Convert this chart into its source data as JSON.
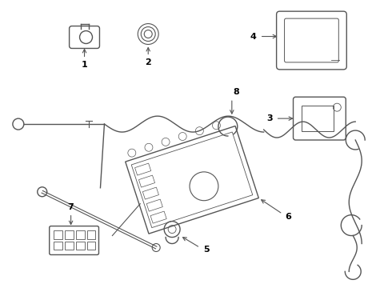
{
  "bg_color": "#ffffff",
  "line_color": "#555555",
  "label_color": "#000000",
  "label_fontsize": 8,
  "figsize": [
    4.9,
    3.6
  ],
  "dpi": 100
}
